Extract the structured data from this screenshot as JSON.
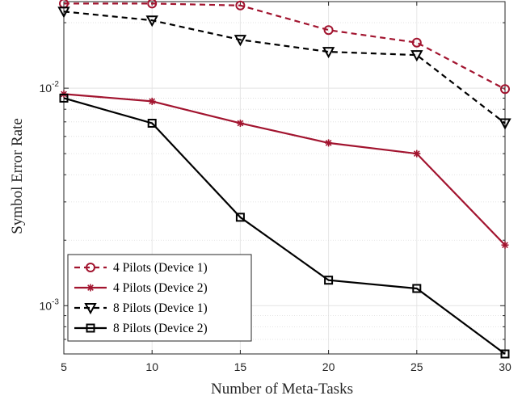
{
  "chart_data": {
    "type": "line",
    "xlabel": "Number of Meta-Tasks",
    "ylabel": "Symbol Error Rate",
    "x": [
      5,
      10,
      15,
      20,
      25,
      30
    ],
    "xticks": [
      "5",
      "10",
      "15",
      "20",
      "25",
      "30"
    ],
    "xlim": [
      5,
      30
    ],
    "yscale": "log",
    "ylim": [
      0.0006,
      0.025
    ],
    "yticks": [
      {
        "value": 0.01,
        "base": "10",
        "exp": "-2"
      },
      {
        "value": 0.001,
        "base": "10",
        "exp": "-3"
      }
    ],
    "grid": true,
    "legend_position": "bottom-left",
    "series": [
      {
        "name": "4 Pilots (Device 1)",
        "color": "#A2142F",
        "dash": "dashed",
        "marker": "circle",
        "values": [
          0.0245,
          0.0245,
          0.024,
          0.0185,
          0.0162,
          0.0099
        ]
      },
      {
        "name": "4 Pilots (Device 2)",
        "color": "#A2142F",
        "dash": "solid",
        "marker": "asterisk",
        "values": [
          0.0094,
          0.0087,
          0.0069,
          0.0056,
          0.005,
          0.0019
        ]
      },
      {
        "name": "8 Pilots (Device 1)",
        "color": "#000000",
        "dash": "dashed",
        "marker": "triangle-down",
        "values": [
          0.0225,
          0.0205,
          0.0167,
          0.0147,
          0.0142,
          0.0069
        ]
      },
      {
        "name": "8 Pilots (Device 2)",
        "color": "#000000",
        "dash": "solid",
        "marker": "square",
        "values": [
          0.009,
          0.0069,
          0.00255,
          0.00131,
          0.0012,
          0.0006
        ]
      }
    ]
  }
}
